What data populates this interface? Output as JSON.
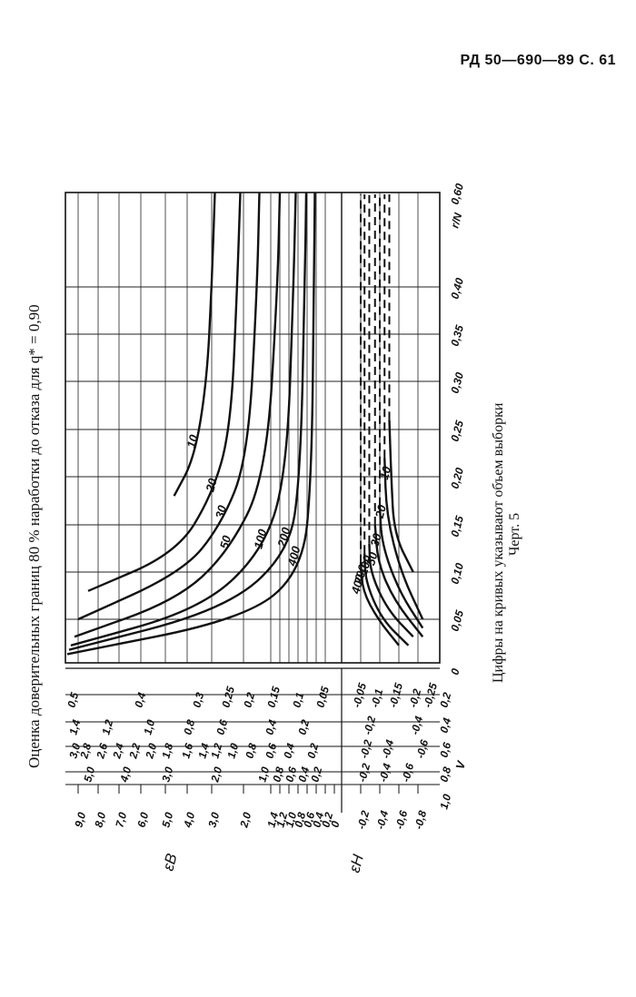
{
  "header": {
    "text": "РД 50—690—89 С. 61"
  },
  "title": "Оценка доверительных границ 80 % наработки до отказа для q* = 0,90",
  "caption": {
    "line1": "Цифры на кривых указывают объем выборки",
    "line2": "Черт. 5"
  },
  "chart_data": {
    "type": "line",
    "xlabel": "r/N",
    "x_ticks": [
      "0",
      "0,05",
      "0,10",
      "0,15",
      "0,20",
      "0,25",
      "0,30",
      "0,35",
      "0,40",
      "0,60"
    ],
    "nomogram": {
      "eps_b_label": "εB",
      "eps_h_label": "εH",
      "v_label": "V",
      "v_values": [
        "1,0",
        "0,8",
        "0,6",
        "0,4",
        "0,2"
      ],
      "eps_b_scale": [
        "9,0",
        "8,0",
        "7,0",
        "6,0",
        "5,0",
        "4,0",
        "3,0",
        "2,0",
        "1,4",
        "1,2",
        "1,0",
        "0,8",
        "0,6",
        "0,4",
        "0,2",
        "0"
      ],
      "eps_h_scale": [
        "-0,2",
        "-0,4",
        "-0,6",
        "-0,8"
      ],
      "v08_upper": [
        "5,0",
        "4,0",
        "3,0",
        "2,0",
        "1,0",
        "0,8",
        "0,6",
        "0,4",
        "0,2"
      ],
      "v08_lower": [
        "-0,2",
        "-0,4",
        "-0,6"
      ],
      "v06_upper": [
        "3,0",
        "2,8",
        "2,6",
        "2,4",
        "2,2",
        "2,0",
        "1,8",
        "1,6",
        "1,4",
        "1,2",
        "1,0",
        "0,8",
        "0,6",
        "0,4",
        "0,2"
      ],
      "v06_lower": [
        "-0,2",
        "-0,4",
        "-0,6"
      ],
      "v04_upper": [
        "1,4",
        "1,2",
        "1,0",
        "0,8",
        "0,6",
        "0,4",
        "0,2"
      ],
      "v04_lower": [
        "-0,2",
        "-0,4"
      ],
      "v02_upper": [
        "0,5",
        "0,4",
        "0,3",
        "0,25",
        "0,2",
        "0,15",
        "0,1",
        "0,05"
      ],
      "v02_lower": [
        "-0,05",
        "-0,1",
        "-0,15",
        "-0,2",
        "-0,25"
      ]
    },
    "upper_curves": [
      {
        "name": "10",
        "points": [
          [
            0.18,
            4.6
          ],
          [
            0.22,
            3.7
          ],
          [
            0.3,
            3.2
          ],
          [
            0.4,
            3.0
          ],
          [
            0.6,
            2.9
          ]
        ]
      },
      {
        "name": "20",
        "points": [
          [
            0.08,
            8.5
          ],
          [
            0.12,
            4.5
          ],
          [
            0.18,
            3.0
          ],
          [
            0.25,
            2.4
          ],
          [
            0.4,
            2.2
          ],
          [
            0.6,
            2.1
          ]
        ]
      },
      {
        "name": "30",
        "points": [
          [
            0.05,
            9.0
          ],
          [
            0.1,
            4.2
          ],
          [
            0.15,
            2.7
          ],
          [
            0.22,
            1.9
          ],
          [
            0.4,
            1.7
          ],
          [
            0.6,
            1.65
          ]
        ]
      },
      {
        "name": "50",
        "points": [
          [
            0.03,
            9.2
          ],
          [
            0.07,
            4.5
          ],
          [
            0.12,
            2.5
          ],
          [
            0.2,
            1.5
          ],
          [
            0.4,
            1.25
          ],
          [
            0.6,
            1.2
          ]
        ]
      },
      {
        "name": "100",
        "points": [
          [
            0.02,
            9.4
          ],
          [
            0.06,
            3.5
          ],
          [
            0.12,
            1.6
          ],
          [
            0.2,
            1.05
          ],
          [
            0.4,
            0.9
          ],
          [
            0.6,
            0.85
          ]
        ]
      },
      {
        "name": "200",
        "points": [
          [
            0.015,
            9.5
          ],
          [
            0.06,
            2.6
          ],
          [
            0.12,
            1.0
          ],
          [
            0.2,
            0.75
          ],
          [
            0.4,
            0.65
          ],
          [
            0.6,
            0.62
          ]
        ]
      },
      {
        "name": "400",
        "points": [
          [
            0.01,
            9.6
          ],
          [
            0.05,
            2.0
          ],
          [
            0.1,
            0.7
          ],
          [
            0.2,
            0.5
          ],
          [
            0.4,
            0.45
          ],
          [
            0.6,
            0.43
          ]
        ]
      }
    ],
    "lower_curves": [
      {
        "name": "10",
        "points": [
          [
            0.1,
            -0.75
          ],
          [
            0.14,
            -0.55
          ],
          [
            0.2,
            -0.52
          ],
          [
            0.26,
            -0.5
          ]
        ]
      },
      {
        "name": "20",
        "points": [
          [
            0.05,
            -0.85
          ],
          [
            0.1,
            -0.62
          ],
          [
            0.16,
            -0.47
          ],
          [
            0.22,
            -0.45
          ]
        ]
      },
      {
        "name": "30",
        "points": [
          [
            0.04,
            -0.85
          ],
          [
            0.08,
            -0.6
          ],
          [
            0.13,
            -0.42
          ],
          [
            0.17,
            -0.4
          ]
        ]
      },
      {
        "name": "50",
        "points": [
          [
            0.03,
            -0.85
          ],
          [
            0.07,
            -0.55
          ],
          [
            0.11,
            -0.38
          ],
          [
            0.15,
            -0.35
          ]
        ]
      },
      {
        "name": "100",
        "points": [
          [
            0.03,
            -0.75
          ],
          [
            0.06,
            -0.48
          ],
          [
            0.1,
            -0.3
          ],
          [
            0.13,
            -0.29
          ]
        ]
      },
      {
        "name": "200",
        "points": [
          [
            0.02,
            -0.7
          ],
          [
            0.05,
            -0.42
          ],
          [
            0.09,
            -0.25
          ],
          [
            0.12,
            -0.24
          ]
        ]
      },
      {
        "name": "400",
        "points": [
          [
            0.02,
            -0.6
          ],
          [
            0.05,
            -0.38
          ],
          [
            0.08,
            -0.22
          ],
          [
            0.11,
            -0.2
          ]
        ]
      }
    ]
  }
}
